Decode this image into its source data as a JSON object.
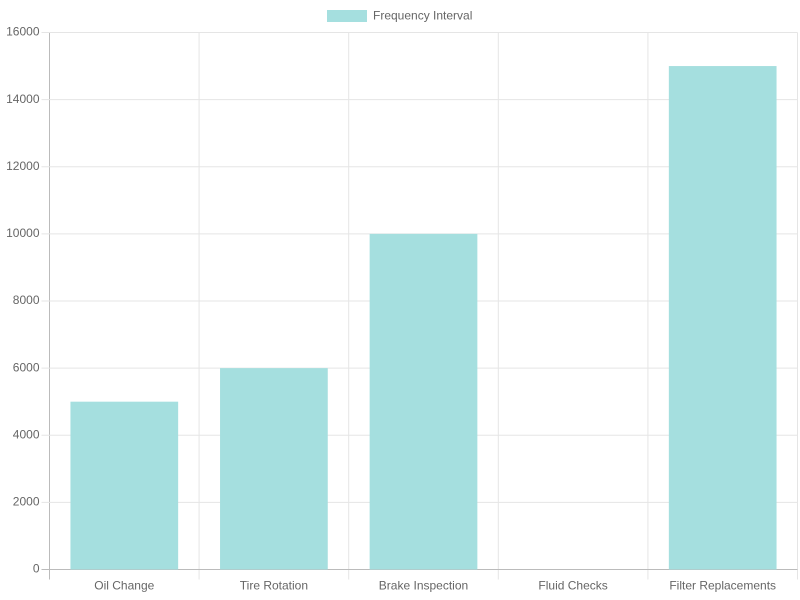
{
  "chart_data": {
    "type": "bar",
    "categories": [
      "Oil Change",
      "Tire Rotation",
      "Brake Inspection",
      "Fluid Checks",
      "Filter Replacements"
    ],
    "series": [
      {
        "name": "Frequency Interval",
        "color": "#a5dfdf",
        "values": [
          5000,
          6000,
          10000,
          0,
          15000
        ]
      }
    ],
    "ylim": [
      0,
      16000
    ],
    "yticks": [
      0,
      2000,
      4000,
      6000,
      8000,
      10000,
      12000,
      14000,
      16000
    ],
    "grid": true,
    "legend": "top"
  }
}
